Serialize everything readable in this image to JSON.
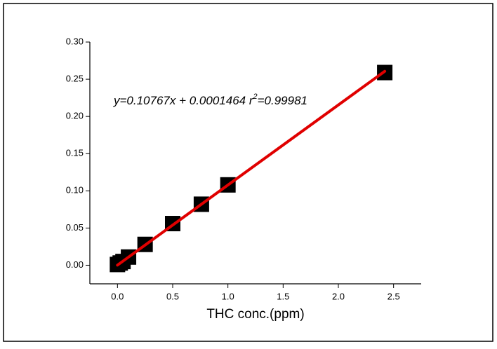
{
  "chart_data": {
    "type": "scatter",
    "x_label": "THC conc.(ppm)",
    "annotation": {
      "main": "y=0.10767x + 0.0001464 r",
      "sup": "2",
      "tail": "=0.99981"
    },
    "series": [
      {
        "type": "scatter",
        "color": "#000000",
        "x": [
          0,
          0.025,
          0.05,
          0.1,
          0.25,
          0.5,
          0.76,
          1.0,
          2.42
        ],
        "values": [
          0.001,
          0.003,
          0.005,
          0.011,
          0.028,
          0.056,
          0.082,
          0.108,
          0.259
        ]
      },
      {
        "type": "line",
        "color": "#e00000",
        "x": [
          0,
          2.42
        ],
        "values": [
          0.0001464,
          0.2607
        ]
      }
    ],
    "xlim": [
      -0.25,
      2.75
    ],
    "ylim": [
      -0.025,
      0.3
    ],
    "xticks": [
      {
        "value": 0,
        "label": "0.0"
      },
      {
        "value": 0.5,
        "label": "0.5"
      },
      {
        "value": 1,
        "label": "1.0"
      },
      {
        "value": 1.5,
        "label": "1.5"
      },
      {
        "value": 2,
        "label": "2.0"
      },
      {
        "value": 2.5,
        "label": "2.5"
      }
    ],
    "yticks": [
      {
        "value": 0,
        "label": "0.00"
      },
      {
        "value": 0.05,
        "label": "0.05"
      },
      {
        "value": 0.1,
        "label": "0.10"
      },
      {
        "value": 0.15,
        "label": "0.15"
      },
      {
        "value": 0.2,
        "label": "0.20"
      },
      {
        "value": 0.25,
        "label": "0.25"
      },
      {
        "value": 0.3,
        "label": "0.30"
      }
    ]
  }
}
